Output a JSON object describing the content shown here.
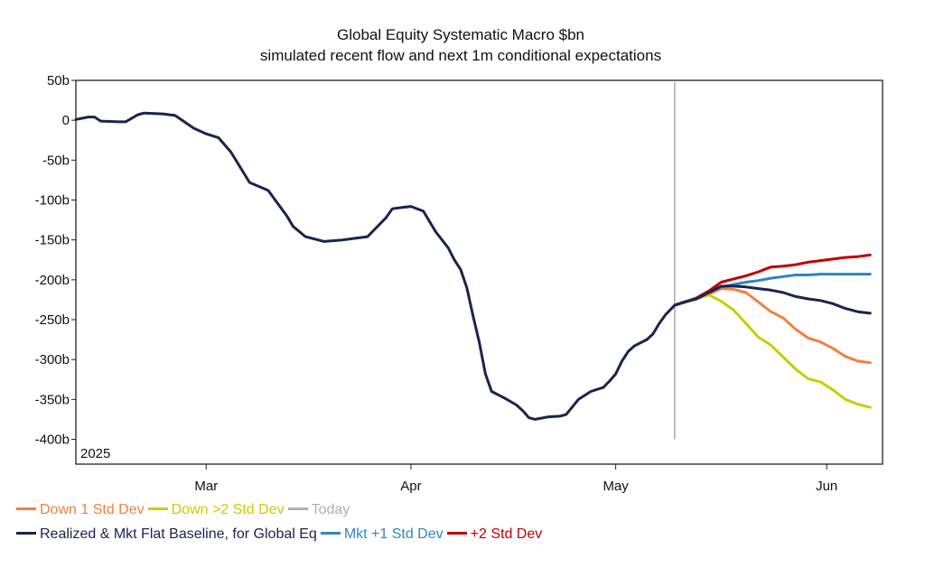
{
  "chart_data": {
    "type": "line",
    "title": "Global Equity Systematic Macro $bn",
    "subtitle": "simulated recent flow and next 1m conditional expectations",
    "year_label": "2025",
    "ylabel": "",
    "xlabel": "",
    "ylim": [
      -410,
      50
    ],
    "xlim": [
      0,
      130
    ],
    "y_ticks": [
      {
        "value": 50,
        "label": "50b"
      },
      {
        "value": 0,
        "label": "0"
      },
      {
        "value": -50,
        "label": "-50b"
      },
      {
        "value": -100,
        "label": "-100b"
      },
      {
        "value": -150,
        "label": "-150b"
      },
      {
        "value": -200,
        "label": "-200b"
      },
      {
        "value": -250,
        "label": "-250b"
      },
      {
        "value": -300,
        "label": "-300b"
      },
      {
        "value": -350,
        "label": "-350b"
      },
      {
        "value": -400,
        "label": "-400b"
      }
    ],
    "x_ticks": [
      {
        "value": 21,
        "label": "Mar"
      },
      {
        "value": 54,
        "label": "Apr"
      },
      {
        "value": 87,
        "label": "May"
      },
      {
        "value": 121,
        "label": "Jun"
      }
    ],
    "today_x": 96.5,
    "today_range": [
      -400,
      48
    ],
    "series": [
      {
        "key": "down1",
        "name": "Down 1 Std Dev",
        "color": "#f08040",
        "points": [
          [
            96.5,
            -232
          ],
          [
            98,
            -228
          ],
          [
            100,
            -224
          ],
          [
            102,
            -218
          ],
          [
            104,
            -211
          ],
          [
            106,
            -212
          ],
          [
            108,
            -216
          ],
          [
            110,
            -228
          ],
          [
            112,
            -240
          ],
          [
            114,
            -248
          ],
          [
            116,
            -262
          ],
          [
            118,
            -273
          ],
          [
            120,
            -278
          ],
          [
            122,
            -286
          ],
          [
            124,
            -296
          ],
          [
            126,
            -302
          ],
          [
            128,
            -304
          ]
        ]
      },
      {
        "key": "down2",
        "name": "Down >2 Std Dev",
        "color": "#cccc00",
        "points": [
          [
            96.5,
            -232
          ],
          [
            98,
            -229
          ],
          [
            100,
            -224
          ],
          [
            102,
            -219
          ],
          [
            104,
            -227
          ],
          [
            106,
            -238
          ],
          [
            108,
            -255
          ],
          [
            110,
            -272
          ],
          [
            112,
            -282
          ],
          [
            114,
            -297
          ],
          [
            116,
            -312
          ],
          [
            118,
            -324
          ],
          [
            120,
            -328
          ],
          [
            122,
            -338
          ],
          [
            124,
            -350
          ],
          [
            126,
            -356
          ],
          [
            128,
            -360
          ]
        ]
      },
      {
        "key": "mkt1",
        "name": "Mkt +1 Std Dev",
        "color": "#2e86c1",
        "points": [
          [
            96.5,
            -232
          ],
          [
            98,
            -228
          ],
          [
            100,
            -224
          ],
          [
            102,
            -216
          ],
          [
            104,
            -209
          ],
          [
            106,
            -206
          ],
          [
            108,
            -203
          ],
          [
            110,
            -201
          ],
          [
            112,
            -198
          ],
          [
            114,
            -196
          ],
          [
            116,
            -194
          ],
          [
            118,
            -194
          ],
          [
            120,
            -193
          ],
          [
            122,
            -193
          ],
          [
            124,
            -193
          ],
          [
            126,
            -193
          ],
          [
            128,
            -193
          ]
        ]
      },
      {
        "key": "std2",
        "name": "+2 Std Dev",
        "color": "#c00000",
        "points": [
          [
            96.5,
            -232
          ],
          [
            98,
            -228
          ],
          [
            100,
            -223
          ],
          [
            102,
            -214
          ],
          [
            104,
            -203
          ],
          [
            106,
            -199
          ],
          [
            108,
            -195
          ],
          [
            110,
            -190
          ],
          [
            112,
            -184
          ],
          [
            114,
            -183
          ],
          [
            116,
            -181
          ],
          [
            118,
            -178
          ],
          [
            120,
            -176
          ],
          [
            122,
            -174
          ],
          [
            124,
            -172
          ],
          [
            126,
            -171
          ],
          [
            128,
            -169
          ]
        ]
      },
      {
        "key": "base",
        "name": "Realized & Mkt Flat Baseline, for Global Eq",
        "color": "#1a2350",
        "points": [
          [
            0,
            1
          ],
          [
            2,
            4
          ],
          [
            3,
            4
          ],
          [
            4,
            -1
          ],
          [
            7,
            -2
          ],
          [
            8,
            -2
          ],
          [
            10,
            7
          ],
          [
            11,
            9
          ],
          [
            14,
            8
          ],
          [
            16,
            6
          ],
          [
            19,
            -10
          ],
          [
            21,
            -17
          ],
          [
            23,
            -22
          ],
          [
            25,
            -40
          ],
          [
            28,
            -78
          ],
          [
            31,
            -88
          ],
          [
            34,
            -120
          ],
          [
            35,
            -133
          ],
          [
            37,
            -146
          ],
          [
            40,
            -152
          ],
          [
            43,
            -150
          ],
          [
            45,
            -148
          ],
          [
            47,
            -146
          ],
          [
            50,
            -122
          ],
          [
            51,
            -111
          ],
          [
            53,
            -109
          ],
          [
            54,
            -108
          ],
          [
            56,
            -114
          ],
          [
            58,
            -140
          ],
          [
            60,
            -160
          ],
          [
            61,
            -175
          ],
          [
            62,
            -187
          ],
          [
            63,
            -210
          ],
          [
            64,
            -245
          ],
          [
            65,
            -278
          ],
          [
            66,
            -318
          ],
          [
            67,
            -340
          ],
          [
            69,
            -348
          ],
          [
            71,
            -357
          ],
          [
            72,
            -364
          ],
          [
            73,
            -373
          ],
          [
            74,
            -375
          ],
          [
            76,
            -372
          ],
          [
            78,
            -371
          ],
          [
            79,
            -369
          ],
          [
            81,
            -350
          ],
          [
            83,
            -340
          ],
          [
            85,
            -335
          ],
          [
            86,
            -327
          ],
          [
            87,
            -318
          ],
          [
            88,
            -302
          ],
          [
            89,
            -290
          ],
          [
            90,
            -283
          ],
          [
            92,
            -275
          ],
          [
            93,
            -268
          ],
          [
            94,
            -255
          ],
          [
            95,
            -244
          ],
          [
            96.5,
            -232
          ],
          [
            98,
            -228
          ],
          [
            100,
            -224
          ],
          [
            102,
            -216
          ],
          [
            104,
            -208
          ],
          [
            106,
            -208
          ],
          [
            108,
            -209
          ],
          [
            110,
            -211
          ],
          [
            112,
            -213
          ],
          [
            114,
            -216
          ],
          [
            116,
            -221
          ],
          [
            118,
            -224
          ],
          [
            120,
            -226
          ],
          [
            122,
            -230
          ],
          [
            124,
            -236
          ],
          [
            126,
            -240
          ],
          [
            128,
            -242
          ]
        ]
      }
    ]
  },
  "legend": {
    "row1": [
      {
        "key": "down1",
        "label": "Down 1 Std Dev",
        "color": "#f08040"
      },
      {
        "key": "down2",
        "label": "Down >2 Std Dev",
        "color": "#cccc00"
      },
      {
        "key": "today",
        "label": "Today",
        "color": "#b0b0b0"
      }
    ],
    "row2": [
      {
        "key": "base",
        "label": "Realized & Mkt Flat Baseline, for Global Eq",
        "color": "#1a2350"
      },
      {
        "key": "mkt1",
        "label": "Mkt +1 Std Dev",
        "color": "#2e86c1"
      },
      {
        "key": "std2",
        "label": "+2 Std Dev",
        "color": "#c00000"
      }
    ]
  }
}
